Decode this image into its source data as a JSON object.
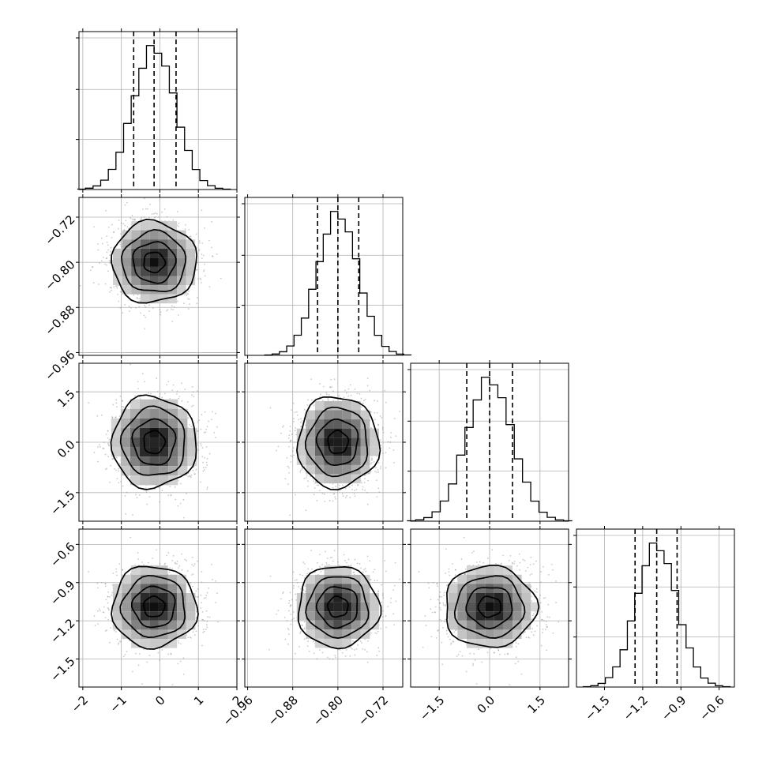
{
  "chart_data": {
    "type": "corner",
    "title": "",
    "parameters": [
      {
        "index": 0,
        "range": [
          -2.1,
          2.0
        ],
        "mean": -0.15,
        "sd": 0.55,
        "quantiles": [
          -0.68,
          -0.15,
          0.42
        ],
        "ticks": [
          -2,
          -1,
          0,
          1,
          2
        ],
        "tick_labels": [
          "−2",
          "−1",
          "0",
          "1",
          "2"
        ]
      },
      {
        "index": 1,
        "range": [
          -0.965,
          -0.685
        ],
        "mean": -0.8,
        "sd": 0.036,
        "quantiles": [
          -0.836,
          -0.8,
          -0.763
        ],
        "ticks": [
          -0.96,
          -0.88,
          -0.8,
          -0.72
        ],
        "tick_labels": [
          "−0.96",
          "−0.88",
          "−0.80",
          "−0.72"
        ]
      },
      {
        "index": 2,
        "range": [
          -2.35,
          2.35
        ],
        "mean": 0.0,
        "sd": 0.68,
        "quantiles": [
          -0.68,
          0.0,
          0.68
        ],
        "ticks": [
          -1.5,
          0.0,
          1.5
        ],
        "tick_labels": [
          "−1.5",
          "0.0",
          "1.5"
        ]
      },
      {
        "index": 3,
        "range": [
          -1.72,
          -0.48
        ],
        "mean": -1.09,
        "sd": 0.16,
        "quantiles": [
          -1.26,
          -1.09,
          -0.93
        ],
        "ticks": [
          -1.5,
          -1.2,
          -0.9,
          -0.6
        ],
        "tick_labels": [
          "−1.5",
          "−1.2",
          "−0.9",
          "−0.6"
        ]
      }
    ],
    "contour_levels_sigma": [
      0.5,
      1.0,
      1.5,
      2.0
    ],
    "grid": true,
    "scatter_points_per_panel": 1400
  }
}
